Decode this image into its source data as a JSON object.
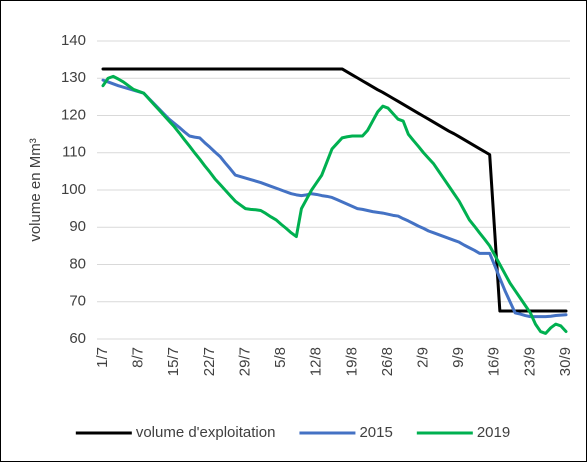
{
  "chart_data": {
    "type": "line",
    "y_label": "volume en Mm³",
    "categories": [
      "1/7",
      null,
      null,
      null,
      null,
      null,
      null,
      "8/7",
      null,
      null,
      null,
      null,
      null,
      null,
      "15/7",
      null,
      null,
      null,
      null,
      null,
      null,
      "22/7",
      null,
      null,
      null,
      null,
      null,
      null,
      "29/7",
      null,
      null,
      null,
      null,
      null,
      null,
      "5/8",
      null,
      null,
      null,
      null,
      null,
      null,
      "12/8",
      null,
      null,
      null,
      null,
      null,
      null,
      "19/8",
      null,
      null,
      null,
      null,
      null,
      null,
      "26/8",
      null,
      null,
      null,
      null,
      null,
      null,
      "2/9",
      null,
      null,
      null,
      null,
      null,
      null,
      "9/9",
      null,
      null,
      null,
      null,
      null,
      null,
      "16/9",
      null,
      null,
      null,
      null,
      null,
      null,
      "23/9",
      null,
      null,
      null,
      null,
      null,
      null,
      "30/9"
    ],
    "series": [
      {
        "name": "volume d'exploitation",
        "color": "#000000",
        "values": [
          132.5,
          132.5,
          132.5,
          132.5,
          132.5,
          132.5,
          132.5,
          132.5,
          132.5,
          132.5,
          132.5,
          132.5,
          132.5,
          132.5,
          132.5,
          132.5,
          132.5,
          132.5,
          132.5,
          132.5,
          132.5,
          132.5,
          132.5,
          132.5,
          132.5,
          132.5,
          132.5,
          132.5,
          132.5,
          132.5,
          132.5,
          132.5,
          132.5,
          132.5,
          132.5,
          132.5,
          132.5,
          132.5,
          132.5,
          132.5,
          132.5,
          132.5,
          132.5,
          132.5,
          132.5,
          132.5,
          132.5,
          132.5,
          131.7,
          130.9,
          130.1,
          129.3,
          128.5,
          127.7,
          126.9,
          126.2,
          125.4,
          124.6,
          123.8,
          123,
          122.2,
          121.4,
          120.6,
          119.8,
          119,
          118.2,
          117.4,
          116.6,
          115.8,
          115.1,
          114.3,
          113.5,
          112.7,
          111.9,
          111.1,
          110.3,
          109.5,
          88.5,
          67.5,
          67.5,
          67.5,
          67.5,
          67.5,
          67.5,
          67.5,
          67.5,
          67.5,
          67.5,
          67.5,
          67.5,
          67.5,
          67.5
        ]
      },
      {
        "name": "2015",
        "color": "#4472c4",
        "values": [
          129.5,
          129,
          128.5,
          128,
          127.6,
          127.2,
          126.8,
          126.4,
          126,
          124.6,
          123.2,
          121.8,
          120.4,
          119,
          117.9,
          116.8,
          115.6,
          114.5,
          114.2,
          114,
          112.7,
          111.5,
          110.2,
          109,
          107.3,
          105.7,
          104,
          103.6,
          103.2,
          102.8,
          102.4,
          102,
          101.5,
          101,
          100.5,
          100,
          99.5,
          99,
          98.7,
          98.5,
          98.7,
          99,
          98.8,
          98.5,
          98.3,
          98,
          97.4,
          96.8,
          96.2,
          95.6,
          95,
          94.8,
          94.5,
          94.2,
          94,
          93.8,
          93.5,
          93.2,
          93,
          92.3,
          91.7,
          91,
          90.3,
          89.7,
          89,
          88.5,
          88,
          87.5,
          87,
          86.5,
          86,
          85.2,
          84.5,
          83.8,
          83,
          83,
          83,
          79.7,
          76.3,
          73,
          70,
          67,
          66.7,
          66.3,
          66,
          66,
          66,
          66,
          66.1,
          66.3,
          66.4,
          66.5
        ]
      },
      {
        "name": "2019",
        "color": "#00b050",
        "values": [
          128,
          130,
          130.5,
          129.8,
          129,
          128,
          127,
          126.5,
          126,
          124.5,
          123,
          121.5,
          120,
          118.5,
          117,
          115.3,
          113.5,
          111.8,
          110,
          108.3,
          106.5,
          104.8,
          103,
          101.5,
          100,
          98.5,
          97,
          96,
          95,
          94.8,
          94.7,
          94.5,
          93.7,
          92.8,
          92,
          90.8,
          89.7,
          88.5,
          87.5,
          95,
          97.5,
          100,
          102,
          104,
          107.5,
          111,
          112.5,
          114,
          114.3,
          114.5,
          114.5,
          114.5,
          116,
          118.5,
          121,
          122.5,
          122,
          120.5,
          119,
          118.5,
          115,
          113.3,
          111.7,
          110,
          108.5,
          107,
          105,
          103,
          101,
          99,
          97,
          94.5,
          92,
          90.3,
          88.5,
          86.8,
          85,
          82.5,
          80,
          77.5,
          75,
          73,
          71,
          69,
          67,
          64,
          62,
          61.5,
          63,
          64,
          63.5,
          62
        ]
      }
    ],
    "ylim": [
      60,
      140
    ],
    "yticks": [
      60,
      70,
      80,
      90,
      100,
      110,
      120,
      130,
      140
    ],
    "grid": true,
    "legend": "bottom"
  }
}
